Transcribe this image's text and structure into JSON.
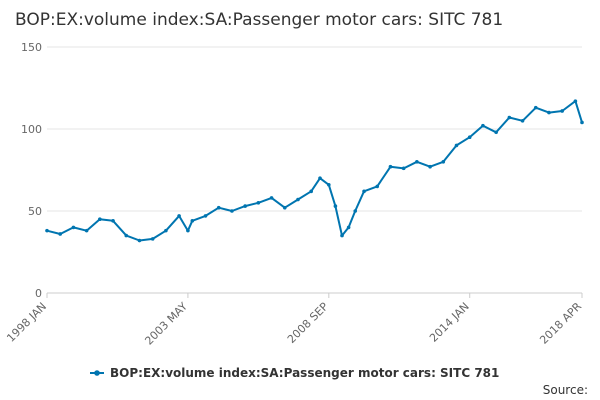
{
  "chart_data": {
    "type": "line",
    "title": "BOP:EX:volume index:SA:Passenger motor cars: SITC 781",
    "xlabel": "",
    "ylabel": "",
    "ylim": [
      0,
      150
    ],
    "y_ticks": [
      0,
      50,
      100,
      150
    ],
    "x_range": [
      "1998 JAN",
      "2018 APR"
    ],
    "x_ticks": [
      "1998 JAN",
      "2003 MAY",
      "2008 SEP",
      "2014 JAN",
      "2018 APR"
    ],
    "grid": "horizontal",
    "legend_position": "bottom",
    "color": "#0075b0",
    "series": [
      {
        "name": "BOP:EX:volume index:SA:Passenger motor cars: SITC 781",
        "x": [
          "1998 JAN",
          "1998 JUL",
          "1999 JAN",
          "1999 JUL",
          "2000 JAN",
          "2000 JUL",
          "2001 JAN",
          "2001 JUL",
          "2002 JAN",
          "2002 JUL",
          "2003 JAN",
          "2003 MAY",
          "2003 JUL",
          "2004 JAN",
          "2004 JUL",
          "2005 JAN",
          "2005 JUL",
          "2006 JAN",
          "2006 JUL",
          "2007 JAN",
          "2007 JUL",
          "2008 JAN",
          "2008 MAY",
          "2008 SEP",
          "2008 DEC",
          "2009 MAR",
          "2009 JUN",
          "2009 SEP",
          "2010 JAN",
          "2010 JUL",
          "2011 JAN",
          "2011 JUL",
          "2012 JAN",
          "2012 JUL",
          "2013 JAN",
          "2013 JUL",
          "2014 JAN",
          "2014 JUL",
          "2015 JAN",
          "2015 JUL",
          "2016 JAN",
          "2016 JUL",
          "2017 JAN",
          "2017 JUL",
          "2018 JAN",
          "2018 APR"
        ],
        "values": [
          38,
          36,
          40,
          38,
          45,
          44,
          35,
          32,
          33,
          38,
          47,
          38,
          44,
          47,
          52,
          50,
          53,
          55,
          58,
          52,
          57,
          62,
          70,
          66,
          53,
          35,
          40,
          50,
          62,
          65,
          77,
          76,
          80,
          77,
          80,
          90,
          95,
          102,
          98,
          107,
          105,
          113,
          110,
          111,
          117,
          104
        ]
      }
    ]
  },
  "legend": {
    "label": "BOP:EX:volume index:SA:Passenger motor cars: SITC 781"
  },
  "source": {
    "label": "Source:"
  }
}
